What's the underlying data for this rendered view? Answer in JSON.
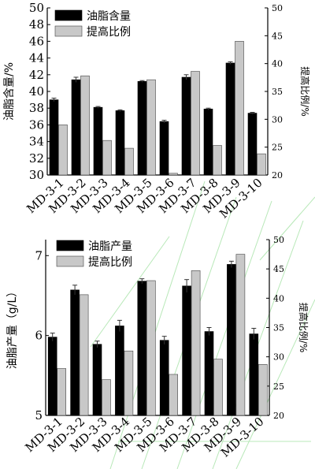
{
  "colors": {
    "primary_bar": "#000000",
    "secondary_bar": "#c8c8c8",
    "watermark": "#b8e8b8"
  },
  "chart_data": [
    {
      "type": "bar",
      "categories": [
        "MD-3-1",
        "MD-3-2",
        "MD-3-3",
        "MD-3-4",
        "MD-3-5",
        "MD-3-6",
        "MD-3-7",
        "MD-3-8",
        "MD-3-9",
        "MD-3-10"
      ],
      "ylabel": "油脂含量/%",
      "y2label": "提高比例/%",
      "ylim": [
        30,
        50
      ],
      "y2lim": [
        20,
        50
      ],
      "yticks": [
        30,
        32,
        34,
        36,
        38,
        40,
        42,
        44,
        46,
        48,
        50
      ],
      "y2ticks": [
        20,
        25,
        30,
        35,
        40,
        45,
        50
      ],
      "legend_position": "top-left",
      "series": [
        {
          "name": "油脂含量",
          "axis": "left",
          "values": [
            39.0,
            41.4,
            38.1,
            37.7,
            41.2,
            36.4,
            41.7,
            37.9,
            43.4,
            37.4
          ],
          "errors": [
            0.2,
            0.3,
            0.1,
            0.1,
            0.1,
            0.15,
            0.3,
            0.1,
            0.15,
            0.1
          ]
        },
        {
          "name": "提高比例",
          "axis": "right",
          "values": [
            29.0,
            37.8,
            26.2,
            24.8,
            37.1,
            20.3,
            38.6,
            25.3,
            44.0,
            23.8
          ]
        }
      ]
    },
    {
      "type": "bar",
      "categories": [
        "MD-3-1",
        "MD-3-2",
        "MD-3-3",
        "MD-3-4",
        "MD-3-5",
        "MD-3-6",
        "MD-3-7",
        "MD-3-8",
        "MD-3-9",
        "MD-3-10"
      ],
      "ylabel": "油脂产量（g/L）",
      "y2label": "提高比例/%",
      "ylim": [
        5,
        7.2
      ],
      "y2lim": [
        20,
        50
      ],
      "yticks": [
        5,
        6,
        7
      ],
      "y2ticks": [
        20,
        25,
        30,
        35,
        40,
        45,
        50
      ],
      "legend_position": "top-left",
      "series": [
        {
          "name": "油脂产量",
          "axis": "left",
          "values": [
            5.98,
            6.57,
            5.89,
            6.12,
            6.68,
            5.94,
            6.62,
            6.05,
            6.89,
            6.02
          ],
          "errors": [
            0.05,
            0.06,
            0.04,
            0.07,
            0.03,
            0.05,
            0.08,
            0.05,
            0.04,
            0.07
          ]
        },
        {
          "name": "提高比例",
          "axis": "right",
          "values": [
            28.0,
            40.6,
            26.1,
            31.0,
            43.0,
            27.0,
            44.7,
            29.6,
            47.5,
            28.7
          ]
        }
      ]
    }
  ]
}
